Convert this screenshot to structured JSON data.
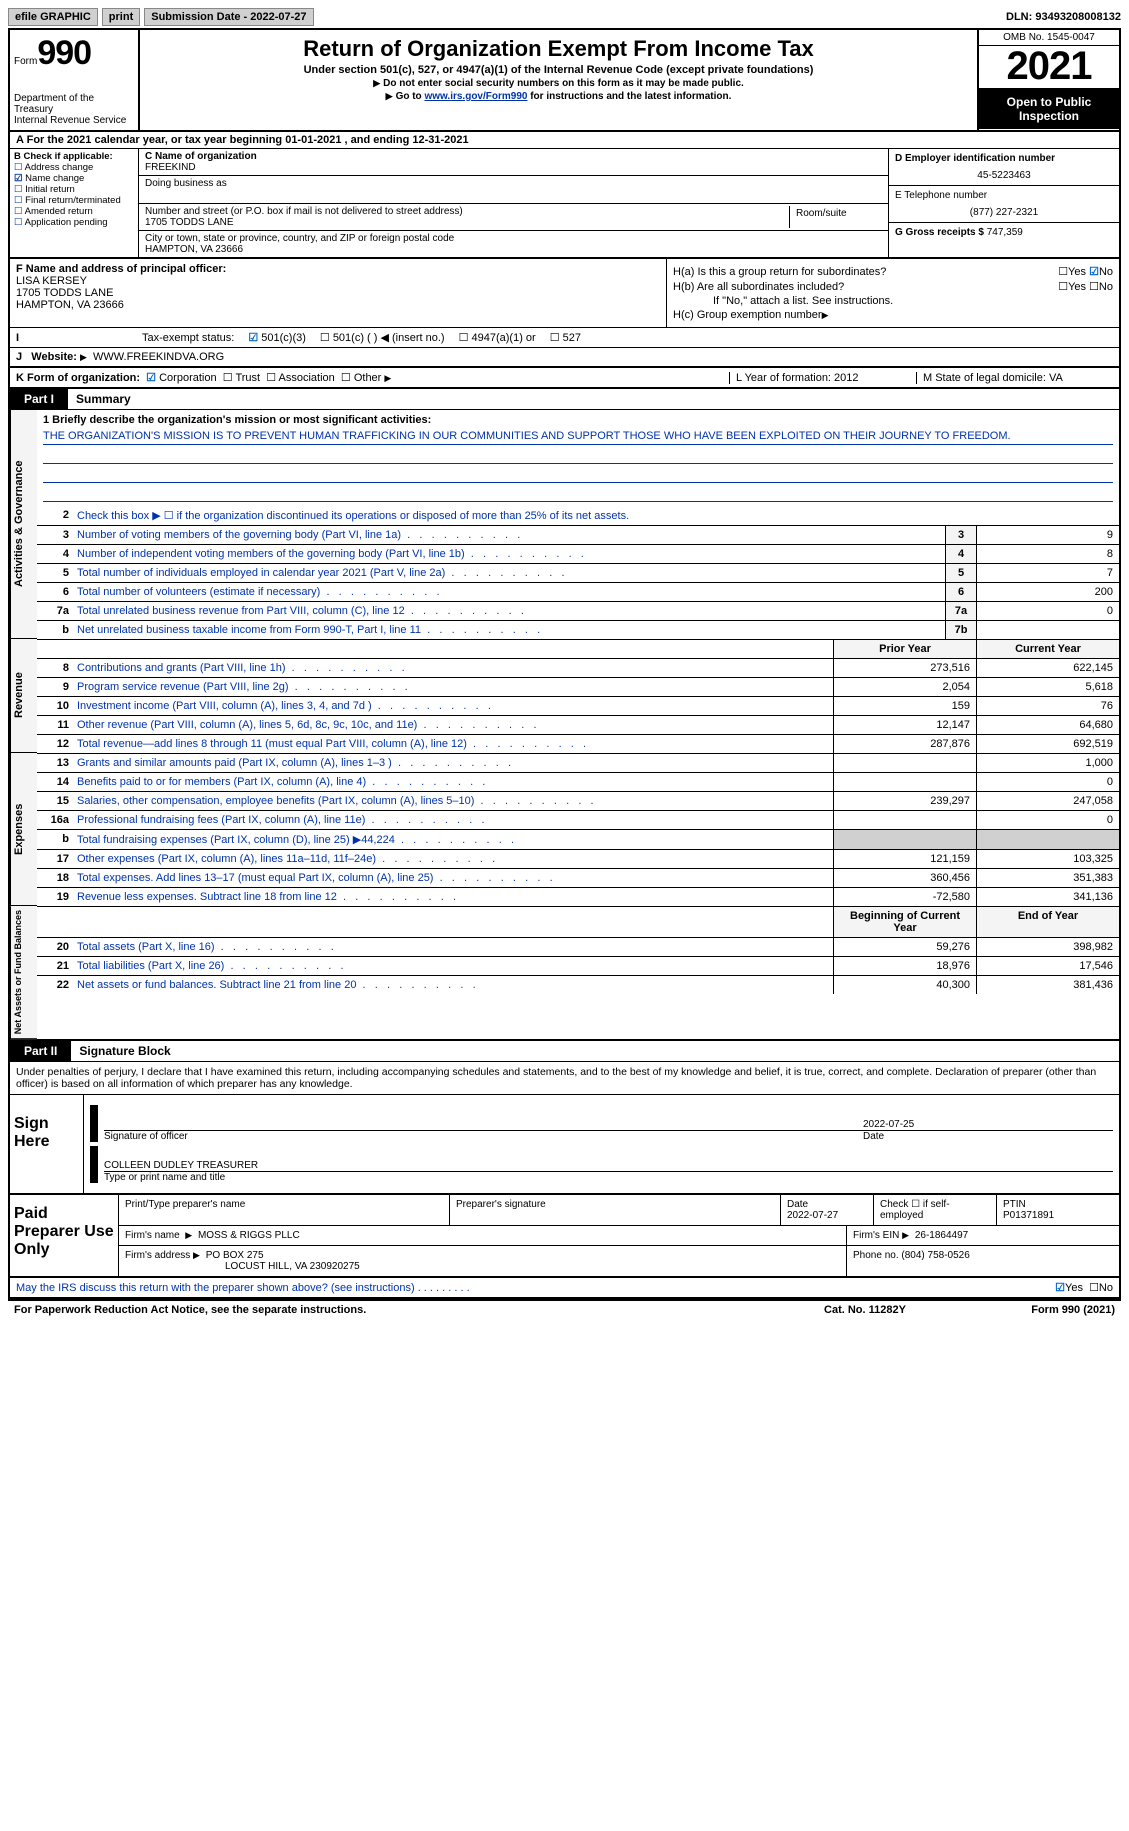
{
  "topbar": {
    "efile": "efile GRAPHIC",
    "print": "print",
    "submission": "Submission Date - 2022-07-27",
    "dln": "DLN: 93493208008132"
  },
  "header": {
    "form_label": "Form",
    "form_num": "990",
    "dept": "Department of the Treasury\nInternal Revenue Service",
    "title": "Return of Organization Exempt From Income Tax",
    "subtitle": "Under section 501(c), 527, or 4947(a)(1) of the Internal Revenue Code (except private foundations)",
    "note1": "Do not enter social security numbers on this form as it may be made public.",
    "note2_pre": "Go to ",
    "note2_link": "www.irs.gov/Form990",
    "note2_post": " for instructions and the latest information.",
    "omb": "OMB No. 1545-0047",
    "year": "2021",
    "open": "Open to Public Inspection"
  },
  "line_a": "For the 2021 calendar year, or tax year beginning 01-01-2021   , and ending 12-31-2021",
  "box_b": {
    "hdr": "B Check if applicable:",
    "items": [
      "Address change",
      "Name change",
      "Initial return",
      "Final return/terminated",
      "Amended return",
      "Application pending"
    ],
    "checked_idx": 1
  },
  "box_c": {
    "name_lbl": "C Name of organization",
    "name": "FREEKIND",
    "dba_lbl": "Doing business as",
    "addr_lbl": "Number and street (or P.O. box if mail is not delivered to street address)",
    "addr": "1705 TODDS LANE",
    "room_lbl": "Room/suite",
    "city_lbl": "City or town, state or province, country, and ZIP or foreign postal code",
    "city": "HAMPTON, VA  23666"
  },
  "box_d": {
    "lbl": "D Employer identification number",
    "val": "45-5223463"
  },
  "box_e": {
    "lbl": "E Telephone number",
    "val": "(877) 227-2321"
  },
  "box_g": {
    "lbl": "G Gross receipts $",
    "val": "747,359"
  },
  "box_f": {
    "lbl": "F  Name and address of principal officer:",
    "name": "LISA KERSEY",
    "addr1": "1705 TODDS LANE",
    "addr2": "HAMPTON, VA  23666"
  },
  "box_h": {
    "a": "H(a)  Is this a group return for subordinates?",
    "a_no": true,
    "b": "H(b)  Are all subordinates included?",
    "b_note": "If \"No,\" attach a list. See instructions.",
    "c": "H(c)  Group exemption number"
  },
  "status": {
    "lbl": "Tax-exempt status:",
    "opts": [
      "501(c)(3)",
      "501(c) (  ) ◀ (insert no.)",
      "4947(a)(1) or",
      "527"
    ],
    "checked_idx": 0
  },
  "website": {
    "lbl": "Website:",
    "val": "WWW.FREEKINDVA.ORG"
  },
  "line_k": {
    "lbl": "K Form of organization:",
    "opts": [
      "Corporation",
      "Trust",
      "Association",
      "Other"
    ],
    "checked_idx": 0,
    "l": "L Year of formation: 2012",
    "m": "M State of legal domicile: VA"
  },
  "part1": {
    "tab": "Part I",
    "title": "Summary"
  },
  "mission": {
    "q": "1  Briefly describe the organization's mission or most significant activities:",
    "text": "THE ORGANIZATION'S MISSION IS TO PREVENT HUMAN TRAFFICKING IN OUR COMMUNITIES AND SUPPORT THOSE WHO HAVE BEEN EXPLOITED ON THEIR JOURNEY TO FREEDOM."
  },
  "line2": "Check this box ▶ ☐  if the organization discontinued its operations or disposed of more than 25% of its net assets.",
  "summary_lines": [
    {
      "n": "3",
      "d": "Number of voting members of the governing body (Part VI, line 1a)",
      "box": "3",
      "v": "9"
    },
    {
      "n": "4",
      "d": "Number of independent voting members of the governing body (Part VI, line 1b)",
      "box": "4",
      "v": "8"
    },
    {
      "n": "5",
      "d": "Total number of individuals employed in calendar year 2021 (Part V, line 2a)",
      "box": "5",
      "v": "7"
    },
    {
      "n": "6",
      "d": "Total number of volunteers (estimate if necessary)",
      "box": "6",
      "v": "200"
    },
    {
      "n": "7a",
      "d": "Total unrelated business revenue from Part VIII, column (C), line 12",
      "box": "7a",
      "v": "0"
    },
    {
      "n": "b",
      "d": "Net unrelated business taxable income from Form 990-T, Part I, line 11",
      "box": "7b",
      "v": ""
    }
  ],
  "col_hdr": {
    "prior": "Prior Year",
    "current": "Current Year"
  },
  "revenue": [
    {
      "n": "8",
      "d": "Contributions and grants (Part VIII, line 1h)",
      "p": "273,516",
      "c": "622,145"
    },
    {
      "n": "9",
      "d": "Program service revenue (Part VIII, line 2g)",
      "p": "2,054",
      "c": "5,618"
    },
    {
      "n": "10",
      "d": "Investment income (Part VIII, column (A), lines 3, 4, and 7d )",
      "p": "159",
      "c": "76"
    },
    {
      "n": "11",
      "d": "Other revenue (Part VIII, column (A), lines 5, 6d, 8c, 9c, 10c, and 11e)",
      "p": "12,147",
      "c": "64,680"
    },
    {
      "n": "12",
      "d": "Total revenue—add lines 8 through 11 (must equal Part VIII, column (A), line 12)",
      "p": "287,876",
      "c": "692,519"
    }
  ],
  "expenses": [
    {
      "n": "13",
      "d": "Grants and similar amounts paid (Part IX, column (A), lines 1–3 )",
      "p": "",
      "c": "1,000"
    },
    {
      "n": "14",
      "d": "Benefits paid to or for members (Part IX, column (A), line 4)",
      "p": "",
      "c": "0"
    },
    {
      "n": "15",
      "d": "Salaries, other compensation, employee benefits (Part IX, column (A), lines 5–10)",
      "p": "239,297",
      "c": "247,058"
    },
    {
      "n": "16a",
      "d": "Professional fundraising fees (Part IX, column (A), line 11e)",
      "p": "",
      "c": "0"
    },
    {
      "n": "b",
      "d": "Total fundraising expenses (Part IX, column (D), line 25) ▶44,224",
      "p": "shade",
      "c": "shade"
    },
    {
      "n": "17",
      "d": "Other expenses (Part IX, column (A), lines 11a–11d, 11f–24e)",
      "p": "121,159",
      "c": "103,325"
    },
    {
      "n": "18",
      "d": "Total expenses. Add lines 13–17 (must equal Part IX, column (A), line 25)",
      "p": "360,456",
      "c": "351,383"
    },
    {
      "n": "19",
      "d": "Revenue less expenses. Subtract line 18 from line 12",
      "p": "-72,580",
      "c": "341,136"
    }
  ],
  "net_hdr": {
    "begin": "Beginning of Current Year",
    "end": "End of Year"
  },
  "net": [
    {
      "n": "20",
      "d": "Total assets (Part X, line 16)",
      "p": "59,276",
      "c": "398,982"
    },
    {
      "n": "21",
      "d": "Total liabilities (Part X, line 26)",
      "p": "18,976",
      "c": "17,546"
    },
    {
      "n": "22",
      "d": "Net assets or fund balances. Subtract line 21 from line 20",
      "p": "40,300",
      "c": "381,436"
    }
  ],
  "part2": {
    "tab": "Part II",
    "title": "Signature Block"
  },
  "sig_decl": "Under penalties of perjury, I declare that I have examined this return, including accompanying schedules and statements, and to the best of my knowledge and belief, it is true, correct, and complete. Declaration of preparer (other than officer) is based on all information of which preparer has any knowledge.",
  "sign": {
    "here": "Sign Here",
    "sig_lbl": "Signature of officer",
    "date_lbl": "Date",
    "date": "2022-07-25",
    "name": "COLLEEN DUDLEY  TREASURER",
    "name_lbl": "Type or print name and title"
  },
  "preparer": {
    "here": "Paid Preparer Use Only",
    "print_lbl": "Print/Type preparer's name",
    "sig_lbl": "Preparer's signature",
    "date_lbl": "Date",
    "date": "2022-07-27",
    "self_lbl": "Check ☐ if self-employed",
    "ptin_lbl": "PTIN",
    "ptin": "P01371891",
    "firm_name_lbl": "Firm's name",
    "firm_name": "MOSS & RIGGS PLLC",
    "ein_lbl": "Firm's EIN",
    "ein": "26-1864497",
    "addr_lbl": "Firm's address",
    "addr1": "PO BOX 275",
    "addr2": "LOCUST HILL, VA  230920275",
    "phone_lbl": "Phone no.",
    "phone": "(804) 758-0526"
  },
  "discuss": "May the IRS discuss this return with the preparer shown above? (see instructions)",
  "footer": {
    "left": "For Paperwork Reduction Act Notice, see the separate instructions.",
    "mid": "Cat. No. 11282Y",
    "right": "Form 990 (2021)"
  },
  "side_labels": {
    "activities": "Activities & Governance",
    "revenue": "Revenue",
    "expenses": "Expenses",
    "net": "Net Assets or Fund Balances"
  }
}
